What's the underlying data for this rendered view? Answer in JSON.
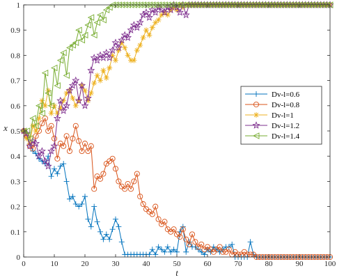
{
  "chart_data": {
    "type": "line",
    "xlabel": "t",
    "ylabel": "x",
    "xlim": [
      0,
      100
    ],
    "ylim": [
      0,
      1
    ],
    "xticks": [
      0,
      10,
      20,
      30,
      40,
      50,
      60,
      70,
      80,
      90,
      100
    ],
    "yticks": [
      0,
      0.1,
      0.2,
      0.3,
      0.4,
      0.5,
      0.6,
      0.7,
      0.8,
      0.9,
      1
    ],
    "grid": false,
    "legend_position": "right",
    "series": [
      {
        "name": "Dv-l=0.6",
        "color": "#0072BD",
        "marker": "plus",
        "x": [
          0,
          1,
          2,
          3,
          4,
          5,
          6,
          7,
          8,
          9,
          10,
          11,
          12,
          13,
          14,
          15,
          16,
          17,
          18,
          19,
          20,
          21,
          22,
          23,
          24,
          25,
          26,
          27,
          28,
          29,
          30,
          31,
          32,
          33,
          34,
          35,
          36,
          37,
          38,
          39,
          40,
          41,
          42,
          43,
          44,
          45,
          46,
          47,
          48,
          49,
          50,
          51,
          52,
          53,
          54,
          55,
          56,
          57,
          58,
          59,
          60,
          61,
          62,
          63,
          64,
          65,
          66,
          67,
          68,
          69,
          70,
          71,
          72,
          73,
          74,
          75,
          76,
          77,
          78,
          79,
          80,
          81,
          82,
          83,
          84,
          85,
          86,
          87,
          88,
          89,
          90,
          91,
          92,
          93,
          94,
          95,
          96,
          97,
          98,
          99,
          100
        ],
        "y": [
          0.5,
          0.49,
          0.45,
          0.42,
          0.41,
          0.39,
          0.38,
          0.37,
          0.4,
          0.32,
          0.35,
          0.33,
          0.36,
          0.37,
          0.3,
          0.23,
          0.24,
          0.21,
          0.2,
          0.21,
          0.24,
          0.15,
          0.12,
          0.2,
          0.14,
          0.1,
          0.07,
          0.09,
          0.07,
          0.11,
          0.15,
          0.12,
          0.06,
          0.01,
          0.01,
          0.01,
          0.01,
          0.01,
          0.01,
          0.01,
          0.01,
          0.01,
          0.03,
          0.01,
          0.04,
          0.03,
          0.02,
          0.04,
          0.02,
          0.03,
          0.02,
          0.1,
          0.12,
          0.02,
          0.06,
          0.04,
          0.04,
          0.03,
          0.02,
          0.01,
          0.03,
          0.02,
          0.04,
          0.03,
          0.02,
          0.03,
          0.04,
          0.04,
          0.05,
          0.0,
          0.0,
          0.0,
          0.0,
          0.0,
          0.06,
          0.01,
          0.0,
          0.0,
          0.0,
          0.0,
          0.0,
          0.0,
          0.0,
          0.0,
          0.0,
          0.0,
          0.0,
          0.0,
          0.0,
          0.0,
          0.0,
          0.0,
          0.0,
          0.0,
          0.0,
          0.0,
          0.0,
          0.0,
          0.0,
          0.0,
          0.0
        ]
      },
      {
        "name": "Dv-l=0.8",
        "color": "#D95319",
        "marker": "circle",
        "x": [
          0,
          1,
          2,
          3,
          4,
          5,
          6,
          7,
          8,
          9,
          10,
          11,
          12,
          13,
          14,
          15,
          16,
          17,
          18,
          19,
          20,
          21,
          22,
          23,
          24,
          25,
          26,
          27,
          28,
          29,
          30,
          31,
          32,
          33,
          34,
          35,
          36,
          37,
          38,
          39,
          40,
          41,
          42,
          43,
          44,
          45,
          46,
          47,
          48,
          49,
          50,
          51,
          52,
          53,
          54,
          55,
          56,
          57,
          58,
          59,
          60,
          61,
          62,
          63,
          64,
          65,
          66,
          67,
          68,
          69,
          70,
          71,
          72,
          73,
          74,
          75,
          76,
          77,
          78,
          79,
          80,
          81,
          82,
          83,
          84,
          85,
          86,
          87,
          88,
          89,
          90,
          91,
          92,
          93,
          94,
          95,
          96,
          97,
          98,
          99,
          100
        ],
        "y": [
          0.5,
          0.48,
          0.44,
          0.43,
          0.48,
          0.5,
          0.53,
          0.55,
          0.5,
          0.52,
          0.47,
          0.39,
          0.45,
          0.44,
          0.48,
          0.42,
          0.47,
          0.52,
          0.46,
          0.42,
          0.45,
          0.42,
          0.44,
          0.27,
          0.32,
          0.31,
          0.33,
          0.37,
          0.38,
          0.39,
          0.35,
          0.3,
          0.28,
          0.27,
          0.29,
          0.27,
          0.3,
          0.33,
          0.24,
          0.21,
          0.19,
          0.18,
          0.17,
          0.2,
          0.15,
          0.13,
          0.14,
          0.11,
          0.1,
          0.11,
          0.09,
          0.08,
          0.11,
          0.07,
          0.05,
          0.09,
          0.06,
          0.04,
          0.05,
          0.03,
          0.04,
          0.03,
          0.02,
          0.03,
          0.04,
          0.02,
          0.02,
          0.03,
          0.01,
          0.02,
          0.01,
          0.01,
          0.02,
          0.01,
          0.01,
          0.01,
          0.0,
          0.0,
          0.0,
          0.0,
          0.0,
          0.0,
          0.0,
          0.0,
          0.0,
          0.0,
          0.0,
          0.0,
          0.0,
          0.0,
          0.0,
          0.0,
          0.0,
          0.0,
          0.0,
          0.0,
          0.0,
          0.0,
          0.0,
          0.0,
          0.0
        ]
      },
      {
        "name": "Dv-l=1",
        "color": "#EDB120",
        "marker": "asterisk",
        "x": [
          0,
          1,
          2,
          3,
          4,
          5,
          6,
          7,
          8,
          9,
          10,
          11,
          12,
          13,
          14,
          15,
          16,
          17,
          18,
          19,
          20,
          21,
          22,
          23,
          24,
          25,
          26,
          27,
          28,
          29,
          30,
          31,
          32,
          33,
          34,
          35,
          36,
          37,
          38,
          39,
          40,
          41,
          42,
          43,
          44,
          45,
          46,
          47,
          48,
          49,
          50,
          51,
          52,
          53,
          54,
          55,
          56,
          57,
          58,
          59,
          60,
          61,
          62,
          63,
          64,
          65,
          66,
          67,
          68,
          69,
          70,
          71,
          72,
          73,
          74,
          75,
          76,
          77,
          78,
          79,
          80,
          81,
          82,
          83,
          84,
          85,
          86,
          87,
          88,
          89,
          90,
          91,
          92,
          93,
          94,
          95,
          96,
          97,
          98,
          99,
          100
        ],
        "y": [
          0.5,
          0.47,
          0.45,
          0.52,
          0.5,
          0.55,
          0.62,
          0.6,
          0.66,
          0.57,
          0.6,
          0.57,
          0.59,
          0.62,
          0.65,
          0.66,
          0.63,
          0.6,
          0.62,
          0.68,
          0.66,
          0.62,
          0.65,
          0.69,
          0.72,
          0.7,
          0.74,
          0.71,
          0.75,
          0.8,
          0.78,
          0.82,
          0.85,
          0.83,
          0.8,
          0.78,
          0.78,
          0.82,
          0.84,
          0.87,
          0.9,
          0.88,
          0.91,
          0.93,
          0.94,
          0.96,
          0.97,
          0.96,
          0.98,
          0.99,
          0.98,
          1.0,
          0.99,
          1.0,
          1.0,
          1.0,
          1.0,
          1.0,
          1.0,
          1.0,
          1.0,
          1.0,
          1.0,
          1.0,
          1.0,
          1.0,
          1.0,
          1.0,
          1.0,
          1.0,
          1.0,
          1.0,
          1.0,
          1.0,
          1.0,
          1.0,
          1.0,
          1.0,
          1.0,
          1.0,
          1.0,
          1.0,
          1.0,
          1.0,
          1.0,
          1.0,
          1.0,
          1.0,
          1.0,
          1.0,
          1.0,
          1.0,
          1.0,
          1.0,
          1.0,
          1.0,
          1.0,
          1.0,
          1.0,
          1.0,
          1.0
        ]
      },
      {
        "name": "Dv-l=1.2",
        "color": "#7E2F8E",
        "marker": "star",
        "x": [
          0,
          1,
          2,
          3,
          4,
          5,
          6,
          7,
          8,
          9,
          10,
          11,
          12,
          13,
          14,
          15,
          16,
          17,
          18,
          19,
          20,
          21,
          22,
          23,
          24,
          25,
          26,
          27,
          28,
          29,
          30,
          31,
          32,
          33,
          34,
          35,
          36,
          37,
          38,
          39,
          40,
          41,
          42,
          43,
          44,
          45,
          46,
          47,
          48,
          49,
          50,
          51,
          52,
          53,
          54,
          55,
          56,
          57,
          58,
          59,
          60,
          61,
          62,
          63,
          64,
          65,
          66,
          67,
          68,
          69,
          70,
          71,
          72,
          73,
          74,
          75,
          76,
          77,
          78,
          79,
          80,
          81,
          82,
          83,
          84,
          85,
          86,
          87,
          88,
          89,
          90,
          91,
          92,
          93,
          94,
          95,
          96,
          97,
          98,
          99,
          100
        ],
        "y": [
          0.5,
          0.49,
          0.44,
          0.46,
          0.45,
          0.4,
          0.42,
          0.38,
          0.36,
          0.42,
          0.44,
          0.55,
          0.62,
          0.58,
          0.6,
          0.66,
          0.68,
          0.7,
          0.62,
          0.68,
          0.6,
          0.63,
          0.74,
          0.79,
          0.78,
          0.8,
          0.79,
          0.81,
          0.79,
          0.82,
          0.85,
          0.83,
          0.86,
          0.88,
          0.87,
          0.9,
          0.92,
          0.91,
          0.93,
          0.96,
          0.97,
          0.95,
          0.98,
          0.97,
          0.99,
          0.98,
          0.97,
          0.99,
          0.98,
          1.0,
          0.99,
          0.97,
          1.0,
          0.96,
          1.0,
          1.0,
          1.0,
          1.0,
          1.0,
          1.0,
          1.0,
          1.0,
          1.0,
          1.0,
          1.0,
          1.0,
          1.0,
          1.0,
          1.0,
          1.0,
          1.0,
          1.0,
          1.0,
          1.0,
          1.0,
          1.0,
          1.0,
          1.0,
          1.0,
          1.0,
          1.0,
          1.0,
          1.0,
          1.0,
          1.0,
          1.0,
          1.0,
          1.0,
          1.0,
          1.0,
          1.0,
          1.0,
          1.0,
          1.0,
          1.0,
          1.0,
          1.0,
          1.0,
          1.0,
          1.0,
          1.0
        ]
      },
      {
        "name": "Dv-l=1.4",
        "color": "#77AC30",
        "marker": "triangle-left",
        "x": [
          0,
          1,
          2,
          3,
          4,
          5,
          6,
          7,
          8,
          9,
          10,
          11,
          12,
          13,
          14,
          15,
          16,
          17,
          18,
          19,
          20,
          21,
          22,
          23,
          24,
          25,
          26,
          27,
          28,
          29,
          30,
          31,
          32,
          33,
          34,
          35,
          36,
          37,
          38,
          39,
          40,
          41,
          42,
          43,
          44,
          45,
          46,
          47,
          48,
          49,
          50,
          51,
          52,
          53,
          54,
          55,
          56,
          57,
          58,
          59,
          60,
          61,
          62,
          63,
          64,
          65,
          66,
          67,
          68,
          69,
          70,
          71,
          72,
          73,
          74,
          75,
          76,
          77,
          78,
          79,
          80,
          81,
          82,
          83,
          84,
          85,
          86,
          87,
          88,
          89,
          90,
          91,
          92,
          93,
          94,
          95,
          96,
          97,
          98,
          99,
          100
        ],
        "y": [
          0.5,
          0.5,
          0.47,
          0.55,
          0.52,
          0.6,
          0.57,
          0.73,
          0.65,
          0.6,
          0.75,
          0.68,
          0.78,
          0.81,
          0.72,
          0.83,
          0.84,
          0.85,
          0.9,
          0.86,
          0.88,
          0.92,
          0.95,
          0.88,
          0.93,
          0.96,
          0.94,
          0.98,
          0.99,
          1.0,
          1.0,
          1.0,
          1.0,
          1.0,
          1.0,
          1.0,
          1.0,
          1.0,
          1.0,
          1.0,
          1.0,
          1.0,
          1.0,
          1.0,
          1.0,
          1.0,
          1.0,
          1.0,
          1.0,
          1.0,
          1.0,
          1.0,
          1.0,
          1.0,
          1.0,
          1.0,
          1.0,
          1.0,
          1.0,
          1.0,
          1.0,
          1.0,
          1.0,
          1.0,
          1.0,
          1.0,
          1.0,
          1.0,
          1.0,
          1.0,
          1.0,
          1.0,
          1.0,
          1.0,
          1.0,
          1.0,
          1.0,
          1.0,
          1.0,
          1.0,
          1.0,
          1.0,
          1.0,
          1.0,
          1.0,
          1.0,
          1.0,
          1.0,
          1.0,
          1.0,
          1.0,
          1.0,
          1.0,
          1.0,
          1.0,
          1.0,
          1.0,
          1.0,
          1.0,
          1.0,
          1.0
        ]
      }
    ]
  }
}
